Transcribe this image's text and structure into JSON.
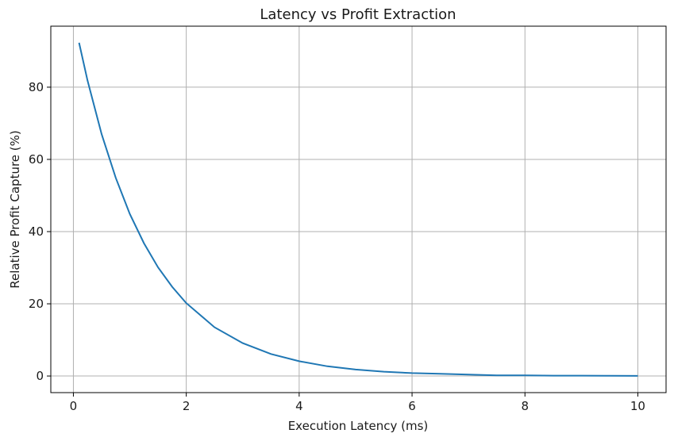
{
  "chart_data": {
    "type": "line",
    "title": "Latency vs Profit Extraction",
    "xlabel": "Execution Latency (ms)",
    "ylabel": "Relative Profit Capture (%)",
    "xlim": [
      -0.4,
      10.5
    ],
    "ylim": [
      -4.6,
      96.9
    ],
    "xticks": [
      0,
      2,
      4,
      6,
      8,
      10
    ],
    "yticks": [
      0,
      20,
      40,
      60,
      80
    ],
    "grid": true,
    "legend": null,
    "series": [
      {
        "name": "Relative Profit Capture",
        "color": "#1f77b4",
        "x": [
          0.1,
          0.25,
          0.5,
          0.75,
          1.0,
          1.25,
          1.5,
          1.75,
          2.0,
          2.5,
          3.0,
          3.5,
          4.0,
          4.5,
          5.0,
          5.5,
          6.0,
          6.5,
          7.0,
          7.5,
          8.0,
          8.5,
          9.0,
          9.5,
          10.0
        ],
        "y": [
          92.3,
          81.9,
          67.0,
          54.9,
          44.9,
          36.8,
          30.1,
          24.7,
          20.2,
          13.5,
          9.1,
          6.1,
          4.1,
          2.7,
          1.8,
          1.2,
          0.8,
          0.6,
          0.4,
          0.2,
          0.2,
          0.1,
          0.1,
          0.05,
          0.03
        ]
      }
    ]
  }
}
